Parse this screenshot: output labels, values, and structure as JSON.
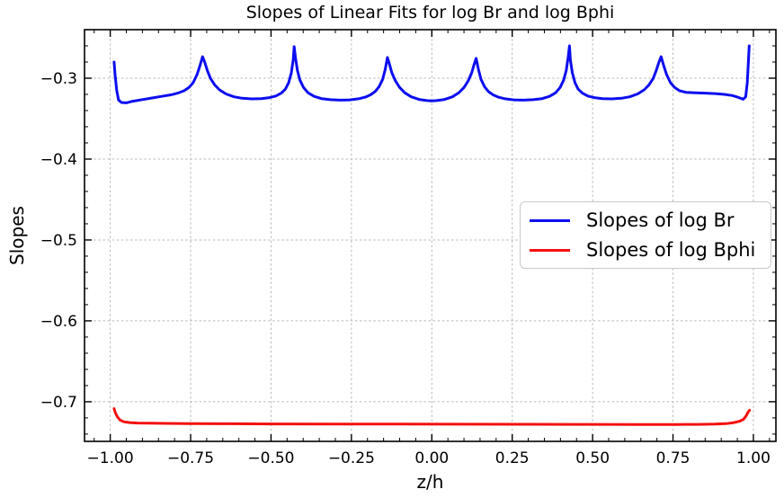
{
  "chart_data": {
    "type": "line",
    "title": "Slopes of Linear Fits for log Br and log Bphi",
    "xlabel": "z/h",
    "ylabel": "Slopes",
    "xlim": [
      -1.08,
      1.07
    ],
    "ylim": [
      -0.749,
      -0.24
    ],
    "grid": true,
    "grid_style": "dashed",
    "grid_color": "#b9b9b9",
    "spine_color": "#000000",
    "background_color": "#ffffff",
    "tick_direction": "in",
    "legend_position": "center right",
    "x_ticks": {
      "values": [
        -1.0,
        -0.75,
        -0.5,
        -0.25,
        0.0,
        0.25,
        0.5,
        0.75,
        1.0
      ],
      "labels": [
        "−1.00",
        "−0.75",
        "−0.50",
        "−0.25",
        "0.00",
        "0.25",
        "0.50",
        "0.75",
        "1.00"
      ],
      "minor_step": 0.05
    },
    "y_ticks": {
      "values": [
        -0.3,
        -0.4,
        -0.5,
        -0.6,
        -0.7
      ],
      "labels": [
        "−0.3",
        "−0.4",
        "−0.5",
        "−0.6",
        "−0.7"
      ],
      "minor_step": 0.02
    },
    "series": [
      {
        "name": "Slopes of log Br",
        "color": "#0d0df0",
        "x": [
          -0.988,
          -0.985,
          -0.98,
          -0.974,
          -0.965,
          -0.95,
          -0.93,
          -0.9,
          -0.87,
          -0.84,
          -0.81,
          -0.79,
          -0.77,
          -0.755,
          -0.742,
          -0.73,
          -0.721,
          -0.713,
          -0.706,
          -0.698,
          -0.688,
          -0.675,
          -0.66,
          -0.64,
          -0.615,
          -0.59,
          -0.56,
          -0.53,
          -0.505,
          -0.485,
          -0.468,
          -0.455,
          -0.445,
          -0.437,
          -0.431,
          -0.428,
          -0.424,
          -0.418,
          -0.41,
          -0.399,
          -0.385,
          -0.366,
          -0.343,
          -0.315,
          -0.285,
          -0.255,
          -0.228,
          -0.207,
          -0.19,
          -0.176,
          -0.164,
          -0.153,
          -0.145,
          -0.138,
          -0.132,
          -0.124,
          -0.113,
          -0.1,
          -0.084,
          -0.064,
          -0.04,
          -0.015,
          0.0,
          0.015,
          0.04,
          0.064,
          0.084,
          0.1,
          0.113,
          0.124,
          0.132,
          0.138,
          0.145,
          0.153,
          0.164,
          0.176,
          0.19,
          0.207,
          0.228,
          0.255,
          0.285,
          0.315,
          0.343,
          0.366,
          0.385,
          0.399,
          0.41,
          0.418,
          0.424,
          0.428,
          0.431,
          0.437,
          0.445,
          0.455,
          0.468,
          0.485,
          0.505,
          0.53,
          0.56,
          0.59,
          0.615,
          0.64,
          0.66,
          0.675,
          0.688,
          0.698,
          0.706,
          0.713,
          0.721,
          0.73,
          0.742,
          0.755,
          0.77,
          0.79,
          0.82,
          0.85,
          0.88,
          0.91,
          0.935,
          0.955,
          0.968,
          0.976,
          0.981,
          0.985,
          0.987
        ],
        "y": [
          -0.28,
          -0.296,
          -0.315,
          -0.327,
          -0.33,
          -0.3305,
          -0.3285,
          -0.3265,
          -0.3245,
          -0.3225,
          -0.3205,
          -0.3185,
          -0.3155,
          -0.3115,
          -0.3055,
          -0.2955,
          -0.2845,
          -0.2735,
          -0.2805,
          -0.2905,
          -0.3005,
          -0.3085,
          -0.3145,
          -0.3195,
          -0.323,
          -0.3248,
          -0.3256,
          -0.3252,
          -0.324,
          -0.322,
          -0.3185,
          -0.3135,
          -0.3055,
          -0.2935,
          -0.2775,
          -0.261,
          -0.2745,
          -0.2905,
          -0.3025,
          -0.3115,
          -0.318,
          -0.3225,
          -0.3252,
          -0.3266,
          -0.3271,
          -0.3268,
          -0.3255,
          -0.3235,
          -0.3205,
          -0.3165,
          -0.3105,
          -0.3015,
          -0.2895,
          -0.2745,
          -0.2825,
          -0.2935,
          -0.3035,
          -0.3115,
          -0.318,
          -0.323,
          -0.3262,
          -0.3277,
          -0.328,
          -0.3277,
          -0.3262,
          -0.323,
          -0.318,
          -0.3115,
          -0.3035,
          -0.2935,
          -0.2825,
          -0.2755,
          -0.2895,
          -0.3015,
          -0.3105,
          -0.3165,
          -0.3205,
          -0.3235,
          -0.3255,
          -0.3268,
          -0.3271,
          -0.3266,
          -0.3252,
          -0.3225,
          -0.318,
          -0.3115,
          -0.3025,
          -0.2905,
          -0.2745,
          -0.26,
          -0.2775,
          -0.2935,
          -0.3055,
          -0.3135,
          -0.3185,
          -0.322,
          -0.324,
          -0.3252,
          -0.3256,
          -0.3248,
          -0.323,
          -0.3195,
          -0.3145,
          -0.3085,
          -0.3005,
          -0.2905,
          -0.2805,
          -0.2735,
          -0.2845,
          -0.2955,
          -0.3055,
          -0.3115,
          -0.3155,
          -0.3175,
          -0.318,
          -0.3185,
          -0.319,
          -0.32,
          -0.3215,
          -0.324,
          -0.326,
          -0.323,
          -0.305,
          -0.275,
          -0.26
        ]
      },
      {
        "name": "Slopes of log Bphi",
        "color": "#f41010",
        "x": [
          -0.988,
          -0.984,
          -0.978,
          -0.97,
          -0.958,
          -0.94,
          -0.915,
          -0.88,
          -0.83,
          -0.76,
          -0.65,
          -0.5,
          -0.3,
          -0.1,
          0.1,
          0.3,
          0.5,
          0.65,
          0.76,
          0.83,
          0.88,
          0.915,
          0.94,
          0.958,
          0.97,
          0.978,
          0.984,
          0.988
        ],
        "y": [
          -0.7085,
          -0.7135,
          -0.7185,
          -0.7225,
          -0.7248,
          -0.7258,
          -0.7263,
          -0.7266,
          -0.7268,
          -0.727,
          -0.7272,
          -0.7274,
          -0.7276,
          -0.7277,
          -0.7278,
          -0.7279,
          -0.728,
          -0.7281,
          -0.7281,
          -0.728,
          -0.7277,
          -0.7271,
          -0.7258,
          -0.724,
          -0.7215,
          -0.717,
          -0.7125,
          -0.7105
        ]
      }
    ]
  }
}
